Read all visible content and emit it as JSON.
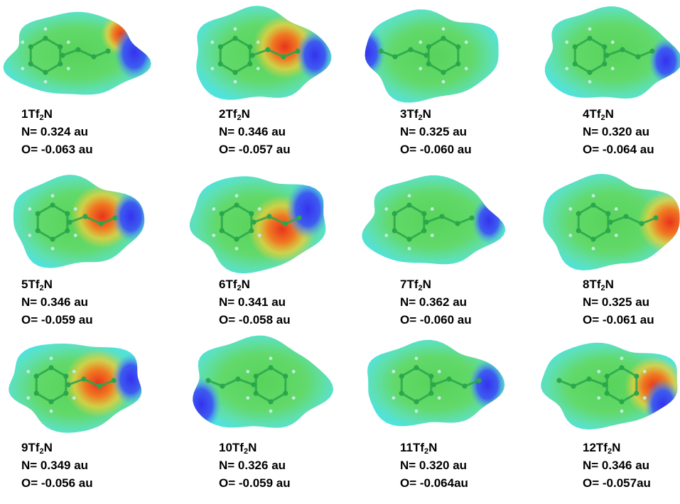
{
  "formula": {
    "base": "Tf",
    "sub": "2",
    "tail": "N"
  },
  "colors": {
    "surface": "#4fe3dc",
    "core": "#58d35a",
    "positive": "#3532ee",
    "negative": "#e8341c",
    "bond": "#2aa64b",
    "hydrogen": "#bfeedd"
  },
  "panels": [
    {
      "id": "1",
      "n_charge": "N= 0.324 au",
      "o_charge": "O= -0.063 au"
    },
    {
      "id": "2",
      "n_charge": "N= 0.346 au",
      "o_charge": "O= -0.057 au"
    },
    {
      "id": "3",
      "n_charge": "N= 0.325 au",
      "o_charge": "O= -0.060 au"
    },
    {
      "id": "4",
      "n_charge": "N= 0.320 au",
      "o_charge": "O= -0.064 au"
    },
    {
      "id": "5",
      "n_charge": "N= 0.346 au",
      "o_charge": "O= -0.059 au"
    },
    {
      "id": "6",
      "n_charge": "N= 0.341 au",
      "o_charge": "O= -0.058 au"
    },
    {
      "id": "7",
      "n_charge": "N= 0.362 au",
      "o_charge": "O= -0.060 au"
    },
    {
      "id": "8",
      "n_charge": "N= 0.325 au",
      "o_charge": "O= -0.061 au"
    },
    {
      "id": "9",
      "n_charge": "N= 0.349 au",
      "o_charge": "O= -0.056 au"
    },
    {
      "id": "10",
      "n_charge": "N= 0.326 au",
      "o_charge": "O= -0.059 au"
    },
    {
      "id": "11",
      "n_charge": "N= 0.320 au",
      "o_charge": "O= -0.064au"
    },
    {
      "id": "12",
      "n_charge": "N= 0.346 au",
      "o_charge": "O= -0.057au"
    }
  ]
}
